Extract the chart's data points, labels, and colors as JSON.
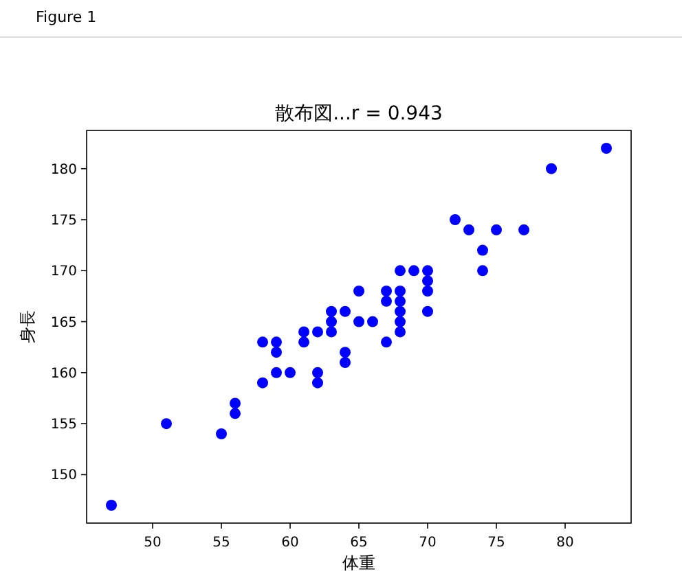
{
  "chart_data": {
    "type": "scatter",
    "title": "散布図...r = 0.943",
    "xlabel": "体重",
    "ylabel": "身長",
    "annotations": [
      "Figure 1"
    ],
    "marker": "circle",
    "grid": false,
    "xlim": [
      45.2,
      84.8
    ],
    "xticks": [
      50,
      55,
      60,
      65,
      70,
      75,
      80
    ],
    "ylim": [
      145.25,
      183.75
    ],
    "yticks": [
      150,
      155,
      160,
      165,
      170,
      175,
      180
    ],
    "series": [
      {
        "color": "#0000ff",
        "x": [
          47,
          51,
          55,
          56,
          56,
          58,
          58,
          59,
          59,
          59,
          60,
          61,
          61,
          62,
          62,
          62,
          63,
          63,
          63,
          64,
          64,
          64,
          65,
          65,
          66,
          67,
          67,
          67,
          68,
          68,
          68,
          68,
          68,
          68,
          69,
          70,
          70,
          70,
          70,
          72,
          73,
          74,
          74,
          75,
          77,
          79,
          83
        ],
        "values": [
          147,
          155,
          154,
          157,
          156,
          163,
          159,
          163,
          162,
          160,
          160,
          164,
          163,
          164,
          160,
          159,
          166,
          165,
          164,
          166,
          162,
          161,
          168,
          165,
          165,
          168,
          167,
          163,
          170,
          168,
          167,
          166,
          165,
          164,
          170,
          170,
          169,
          168,
          166,
          175,
          174,
          172,
          170,
          174,
          174,
          180,
          182
        ]
      }
    ]
  }
}
